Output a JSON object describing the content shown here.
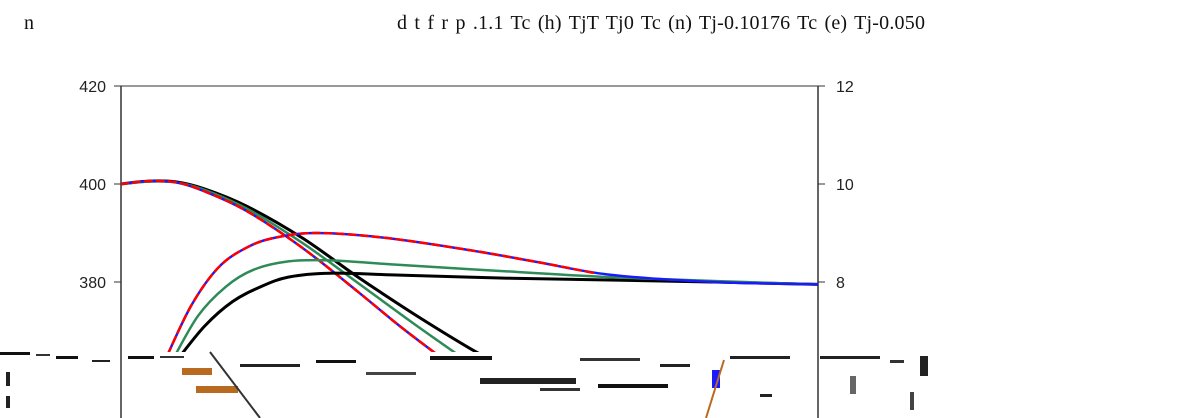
{
  "header": {
    "left_text": "n",
    "right_text": "d t   f   r    p .1.1 Tc (h) TjT Tj0 Tc (n) Tj-0.10176 Tc (e) Tj-0.050"
  },
  "chart_data": {
    "type": "line",
    "title": "",
    "xlabel": "",
    "ylabel": "",
    "grid": false,
    "legend": "none",
    "xlim": [
      0,
      100
    ],
    "ylim_left": [
      360,
      420
    ],
    "ylim_right": [
      6,
      12
    ],
    "left_ticks": [
      "420",
      "400",
      "380"
    ],
    "right_ticks": [
      "12",
      "10",
      "8"
    ],
    "series": [
      {
        "axis": "left",
        "color": "#000000",
        "dashed": false,
        "stroke_width": 3,
        "points": [
          [
            0,
            400
          ],
          [
            4,
            400.6
          ],
          [
            8,
            400.4
          ],
          [
            12,
            399
          ],
          [
            18,
            395.5
          ],
          [
            26,
            389
          ],
          [
            34,
            381
          ],
          [
            42,
            373.5
          ],
          [
            50,
            366.5
          ],
          [
            54,
            363.5
          ]
        ]
      },
      {
        "axis": "left",
        "color": "#2e8b57",
        "dashed": false,
        "stroke_width": 2.5,
        "points": [
          [
            0,
            400
          ],
          [
            4,
            400.5
          ],
          [
            8,
            400.3
          ],
          [
            12,
            398.8
          ],
          [
            18,
            395
          ],
          [
            26,
            388
          ],
          [
            34,
            379.8
          ],
          [
            42,
            371.5
          ],
          [
            49,
            364.5
          ]
        ]
      },
      {
        "axis": "left",
        "color": "#1a1aff",
        "dashed": false,
        "stroke_width": 2.5,
        "points": [
          [
            0,
            400
          ],
          [
            4,
            400.6
          ],
          [
            8,
            400.3
          ],
          [
            12,
            398.5
          ],
          [
            18,
            394.5
          ],
          [
            26,
            387
          ],
          [
            34,
            378
          ],
          [
            40,
            371
          ],
          [
            46,
            364.5
          ]
        ]
      },
      {
        "axis": "left",
        "color": "#ff0000",
        "dashed": true,
        "stroke_width": 2.5,
        "points": [
          [
            0,
            400
          ],
          [
            4,
            400.6
          ],
          [
            8,
            400.3
          ],
          [
            12,
            398.5
          ],
          [
            18,
            394.5
          ],
          [
            26,
            387
          ],
          [
            34,
            378
          ],
          [
            40,
            371
          ],
          [
            46,
            364.5
          ]
        ]
      },
      {
        "axis": "right",
        "color": "#000000",
        "dashed": false,
        "stroke_width": 3,
        "points": [
          [
            8,
            6.4
          ],
          [
            12,
            7.1
          ],
          [
            16,
            7.6
          ],
          [
            20,
            7.9
          ],
          [
            24,
            8.1
          ],
          [
            30,
            8.18
          ],
          [
            40,
            8.14
          ],
          [
            55,
            8.08
          ],
          [
            70,
            8.04
          ],
          [
            85,
            8.0
          ],
          [
            100,
            7.95
          ]
        ]
      },
      {
        "axis": "right",
        "color": "#2e8b57",
        "dashed": false,
        "stroke_width": 2.5,
        "points": [
          [
            7,
            6.3
          ],
          [
            11,
            7.3
          ],
          [
            15,
            7.9
          ],
          [
            19,
            8.25
          ],
          [
            24,
            8.42
          ],
          [
            30,
            8.44
          ],
          [
            40,
            8.35
          ],
          [
            55,
            8.22
          ],
          [
            70,
            8.1
          ],
          [
            85,
            8.02
          ],
          [
            100,
            7.95
          ]
        ]
      },
      {
        "axis": "right",
        "color": "#1a1aff",
        "dashed": false,
        "stroke_width": 2.5,
        "points": [
          [
            6,
            6.3
          ],
          [
            10,
            7.5
          ],
          [
            14,
            8.3
          ],
          [
            18,
            8.7
          ],
          [
            22,
            8.9
          ],
          [
            28,
            9.0
          ],
          [
            38,
            8.9
          ],
          [
            50,
            8.65
          ],
          [
            60,
            8.4
          ],
          [
            70,
            8.15
          ],
          [
            85,
            8.0
          ],
          [
            100,
            7.95
          ]
        ]
      },
      {
        "axis": "right",
        "color": "#ff0000",
        "dashed": true,
        "stroke_width": 2.5,
        "points": [
          [
            6,
            6.3
          ],
          [
            10,
            7.5
          ],
          [
            14,
            8.3
          ],
          [
            18,
            8.7
          ],
          [
            22,
            8.9
          ],
          [
            28,
            9.0
          ],
          [
            38,
            8.9
          ],
          [
            50,
            8.65
          ],
          [
            60,
            8.4
          ],
          [
            68,
            8.18
          ]
        ]
      }
    ]
  }
}
